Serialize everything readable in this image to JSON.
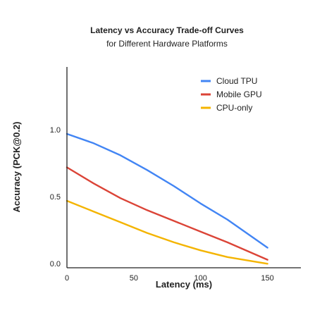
{
  "chart_data": {
    "type": "line",
    "title": "Latency vs Accuracy Trade-off Curves",
    "subtitle": "for Different Hardware Platforms",
    "xlabel": "Latency (ms)",
    "ylabel": "Accuracy (PCK@0.2)",
    "xlim": [
      0,
      175
    ],
    "ylim": [
      0,
      1.5
    ],
    "x_ticks": [
      0,
      50,
      100,
      150
    ],
    "x_tick_labels": [
      "0",
      "50",
      "100",
      "150"
    ],
    "y_ticks": [
      0.0,
      0.5,
      1.0
    ],
    "y_tick_labels": [
      "0.0",
      "0.5",
      "1.0"
    ],
    "grid": false,
    "legend_position": "top-right",
    "series": [
      {
        "name": "Cloud TPU",
        "color": "#4285f4",
        "x": [
          0,
          20,
          40,
          60,
          80,
          100,
          120,
          150
        ],
        "y": [
          1.0,
          0.93,
          0.84,
          0.73,
          0.61,
          0.48,
          0.36,
          0.15
        ]
      },
      {
        "name": "Mobile GPU",
        "color": "#db4437",
        "x": [
          0,
          20,
          40,
          60,
          80,
          100,
          120,
          150
        ],
        "y": [
          0.75,
          0.63,
          0.52,
          0.43,
          0.35,
          0.27,
          0.19,
          0.06
        ]
      },
      {
        "name": "CPU-only",
        "color": "#f4b400",
        "x": [
          0,
          20,
          40,
          60,
          80,
          100,
          120,
          150
        ],
        "y": [
          0.5,
          0.42,
          0.34,
          0.26,
          0.19,
          0.13,
          0.08,
          0.03
        ]
      }
    ]
  }
}
